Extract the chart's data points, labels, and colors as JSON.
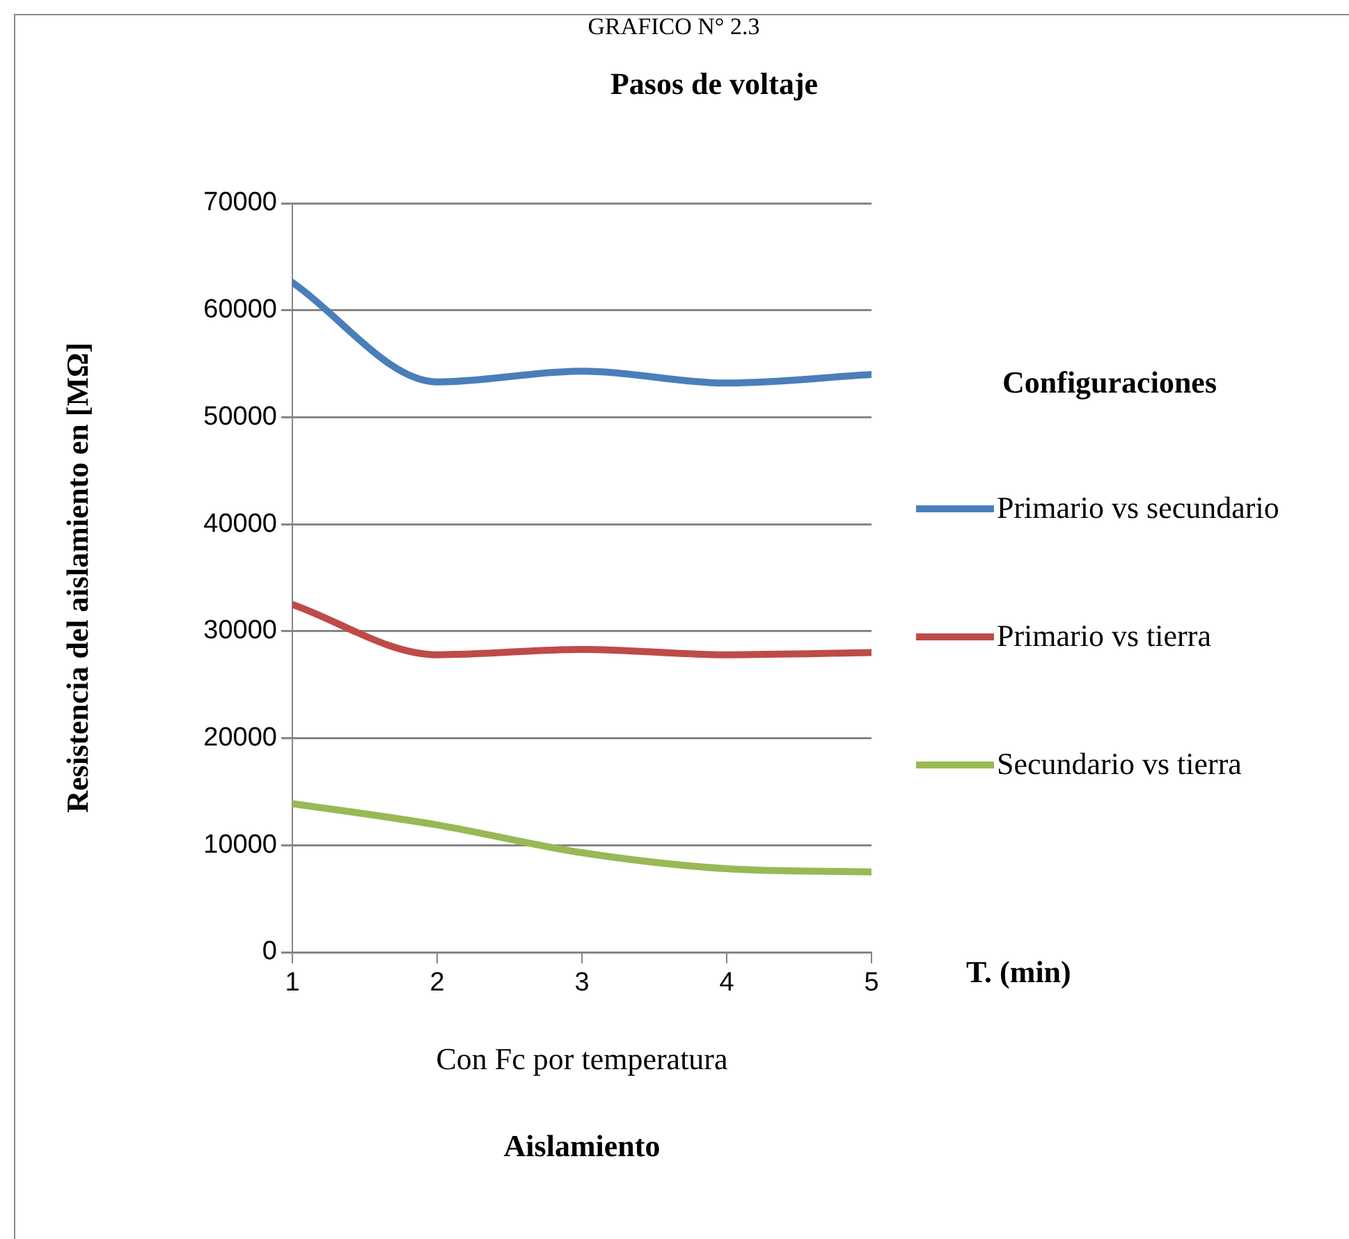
{
  "chart_data": {
    "type": "line",
    "title": "Pasos de voltaje",
    "xlabel": "T. (min)",
    "ylabel": "Resistencia del aislamiento en [MΩ]",
    "legend_title": "Configuraciones",
    "annotations": [
      "GRAFICO N° 2.3",
      "Con Fc por temperatura",
      "Aislamiento"
    ],
    "x": [
      1,
      2,
      3,
      4,
      5
    ],
    "series": [
      {
        "name": "Primario vs secundario",
        "color": "#4a7ebb",
        "values": [
          62600,
          53300,
          54300,
          53200,
          54000
        ]
      },
      {
        "name": "Primario vs tierra",
        "color": "#be4b48",
        "values": [
          32500,
          27800,
          28300,
          27800,
          28000
        ]
      },
      {
        "name": "Secundario vs tierra",
        "color": "#98b954",
        "values": [
          13900,
          11900,
          9300,
          7800,
          7500
        ]
      }
    ],
    "xlim": [
      1,
      5
    ],
    "xticks": [
      1,
      2,
      3,
      4,
      5
    ],
    "ylim": [
      0,
      70000
    ],
    "yticks": [
      0,
      10000,
      20000,
      30000,
      40000,
      50000,
      60000,
      70000
    ],
    "grid": "y",
    "legend": "right",
    "marker": "none",
    "line_style": "solid"
  }
}
